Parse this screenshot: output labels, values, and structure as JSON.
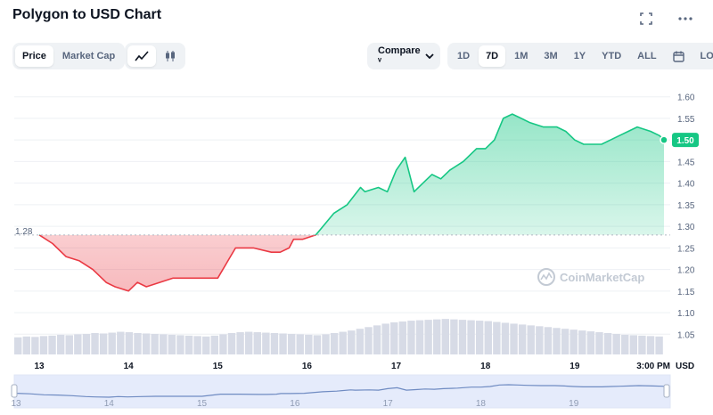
{
  "header": {
    "title": "Polygon to USD Chart",
    "fullscreen_icon": "expand-icon",
    "more_icon": "ellipsis-icon"
  },
  "toolbar": {
    "type_tabs": [
      {
        "label": "Price",
        "active": true
      },
      {
        "label": "Market Cap",
        "active": false
      }
    ],
    "chart_style_icons": [
      "line-chart-icon",
      "candlestick-icon"
    ],
    "compare_label": "Compare ᵛ",
    "compare_icon": "chevron-down-icon",
    "ranges": [
      {
        "label": "1D",
        "active": false
      },
      {
        "label": "7D",
        "active": true
      },
      {
        "label": "1M",
        "active": false
      },
      {
        "label": "3M",
        "active": false
      },
      {
        "label": "1Y",
        "active": false
      },
      {
        "label": "YTD",
        "active": false
      },
      {
        "label": "ALL",
        "active": false
      }
    ],
    "calendar_icon": "calendar-icon",
    "log_label": "LOG"
  },
  "colors": {
    "up": "#16c784",
    "down": "#ea3943",
    "volume": "#d7dbe6",
    "navigator_fill": "#e5ebfb",
    "navigator_line": "#6f8bc2"
  },
  "chart_data": {
    "type": "line",
    "y_unit": "USD",
    "ylim": [
      1.03,
      1.62
    ],
    "yticks": [
      "1.60",
      "1.55",
      "1.50",
      "1.45",
      "1.40",
      "1.35",
      "1.30",
      "1.25",
      "1.20",
      "1.15",
      "1.10",
      "1.05"
    ],
    "x_labels": [
      "13",
      "14",
      "15",
      "16",
      "17",
      "18",
      "19",
      "3:00 PM"
    ],
    "reference_value": "1.28",
    "current_value": "1.50",
    "watermark": "CoinMarketCap",
    "series": [
      {
        "x": [
          0,
          0.15,
          0.3,
          0.45,
          0.6,
          0.75,
          0.85,
          1.0,
          1.1,
          1.2,
          1.35,
          1.5,
          1.65,
          1.8,
          2.0,
          2.2,
          2.4,
          2.6,
          2.7,
          2.8,
          2.85,
          2.95,
          3.1,
          3.3,
          3.45,
          3.6,
          3.65,
          3.8,
          3.9,
          4.0,
          4.1,
          4.2,
          4.3,
          4.4,
          4.5,
          4.6,
          4.75,
          4.9,
          5.0,
          5.1,
          5.2,
          5.3,
          5.4,
          5.5,
          5.65,
          5.8,
          5.9,
          6.0,
          6.1,
          6.2,
          6.3,
          6.4,
          6.5,
          6.6,
          6.7,
          6.85,
          6.95,
          7.0
        ],
        "y": [
          1.28,
          1.26,
          1.23,
          1.22,
          1.2,
          1.17,
          1.16,
          1.15,
          1.17,
          1.16,
          1.17,
          1.18,
          1.18,
          1.18,
          1.18,
          1.25,
          1.25,
          1.24,
          1.24,
          1.25,
          1.27,
          1.27,
          1.28,
          1.33,
          1.35,
          1.39,
          1.38,
          1.39,
          1.38,
          1.43,
          1.46,
          1.38,
          1.4,
          1.42,
          1.41,
          1.43,
          1.45,
          1.48,
          1.48,
          1.5,
          1.55,
          1.56,
          1.55,
          1.54,
          1.53,
          1.53,
          1.52,
          1.5,
          1.49,
          1.49,
          1.49,
          1.5,
          1.51,
          1.52,
          1.53,
          1.52,
          1.51,
          1.5
        ]
      }
    ],
    "volume": [
      0.4,
      0.42,
      0.41,
      0.43,
      0.44,
      0.46,
      0.45,
      0.47,
      0.48,
      0.5,
      0.49,
      0.51,
      0.53,
      0.52,
      0.5,
      0.49,
      0.48,
      0.47,
      0.46,
      0.45,
      0.44,
      0.43,
      0.42,
      0.44,
      0.47,
      0.5,
      0.52,
      0.53,
      0.52,
      0.51,
      0.5,
      0.49,
      0.48,
      0.47,
      0.46,
      0.45,
      0.47,
      0.5,
      0.53,
      0.56,
      0.6,
      0.64,
      0.68,
      0.72,
      0.75,
      0.77,
      0.79,
      0.8,
      0.81,
      0.82,
      0.83,
      0.82,
      0.81,
      0.8,
      0.79,
      0.78,
      0.76,
      0.74,
      0.72,
      0.7,
      0.68,
      0.66,
      0.64,
      0.62,
      0.6,
      0.58,
      0.56,
      0.54,
      0.52,
      0.5,
      0.48,
      0.46,
      0.45,
      0.44,
      0.43,
      0.42
    ],
    "navigator_labels": [
      "13",
      "14",
      "15",
      "16",
      "17",
      "18",
      "19"
    ]
  }
}
